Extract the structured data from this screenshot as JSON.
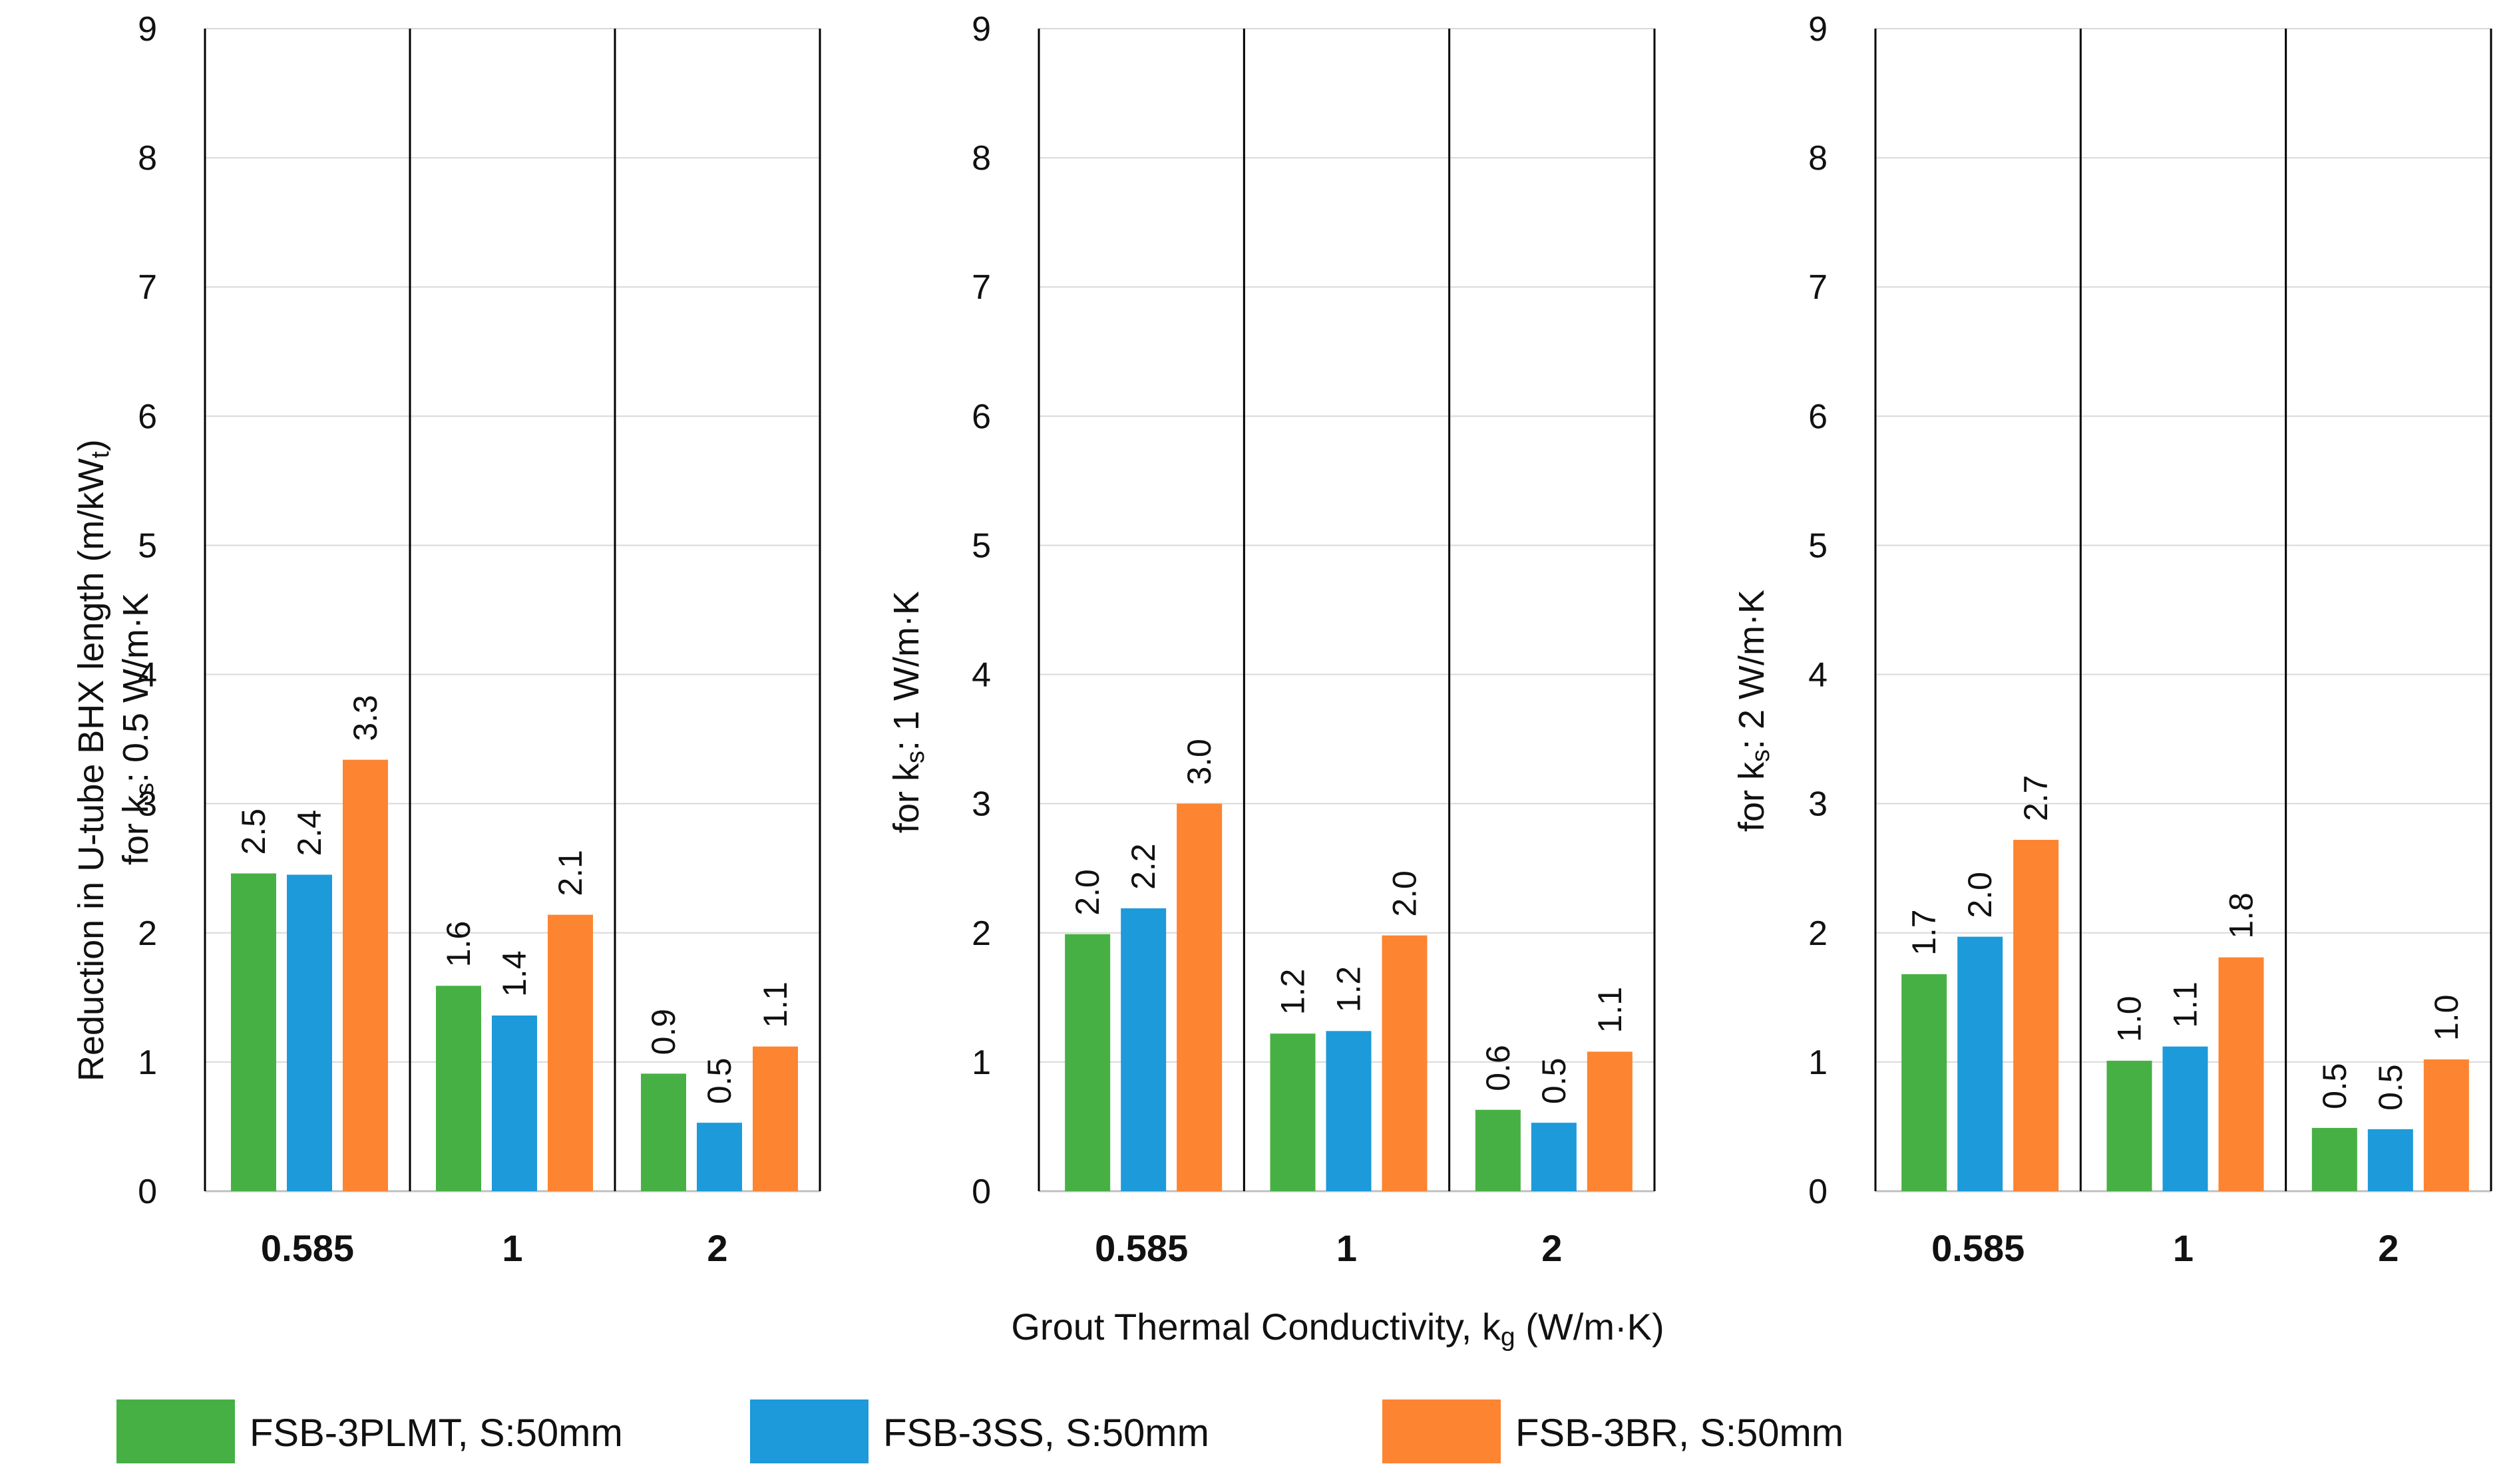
{
  "chart_data": {
    "type": "bar",
    "xlabel": "Grout Thermal Conductivity, k",
    "xlabel_sub": "g",
    "xlabel_suffix": " (W/m·K)",
    "ylabel_main": "Reduction in U-tube BHX length (m/kW",
    "ylabel_main_sub": "t",
    "ylabel_main_suffix": ")",
    "ylim": [
      0,
      9
    ],
    "yticks": [
      "0",
      "1",
      "2",
      "3",
      "4",
      "5",
      "6",
      "7",
      "8",
      "9"
    ],
    "categories": [
      "0.585",
      "1",
      "2"
    ],
    "series_names": [
      "FSB-3PLMT, S:50mm",
      "FSB-3SS, S:50mm",
      "FSB-3BR, S:50mm"
    ],
    "colors": [
      "#47b044",
      "#1d9ad9",
      "#fd8430"
    ],
    "legend_position": "bottom",
    "panels": [
      {
        "ylabel_prefix": "for k",
        "ylabel_sub": "s",
        "ylabel_suffix": ": 0.5 W/m·K",
        "series": [
          {
            "name": "FSB-3PLMT, S:50mm",
            "values": [
              2.46,
              1.59,
              0.91
            ],
            "labels": [
              "2.5",
              "1.6",
              "0.9"
            ]
          },
          {
            "name": "FSB-3SS, S:50mm",
            "values": [
              2.45,
              1.36,
              0.53
            ],
            "labels": [
              "2.4",
              "1.4",
              "0.5"
            ]
          },
          {
            "name": "FSB-3BR, S:50mm",
            "values": [
              3.34,
              2.14,
              1.12
            ],
            "labels": [
              "3.3",
              "2.1",
              "1.1"
            ]
          }
        ]
      },
      {
        "ylabel_prefix": "for k",
        "ylabel_sub": "s",
        "ylabel_suffix": ": 1 W/m·K",
        "series": [
          {
            "name": "FSB-3PLMT, S:50mm",
            "values": [
              1.99,
              1.22,
              0.63
            ],
            "labels": [
              "2.0",
              "1.2",
              "0.6"
            ]
          },
          {
            "name": "FSB-3SS, S:50mm",
            "values": [
              2.19,
              1.24,
              0.53
            ],
            "labels": [
              "2.2",
              "1.2",
              "0.5"
            ]
          },
          {
            "name": "FSB-3BR, S:50mm",
            "values": [
              3.0,
              1.98,
              1.08
            ],
            "labels": [
              "3.0",
              "2.0",
              "1.1"
            ]
          }
        ]
      },
      {
        "ylabel_prefix": "for k",
        "ylabel_sub": "s",
        "ylabel_suffix": ": 2 W/m·K",
        "series": [
          {
            "name": "FSB-3PLMT, S:50mm",
            "values": [
              1.68,
              1.01,
              0.49
            ],
            "labels": [
              "1.7",
              "1.0",
              "0.5"
            ]
          },
          {
            "name": "FSB-3SS, S:50mm",
            "values": [
              1.97,
              1.12,
              0.48
            ],
            "labels": [
              "2.0",
              "1.1",
              "0.5"
            ]
          },
          {
            "name": "FSB-3BR, S:50mm",
            "values": [
              2.72,
              1.81,
              1.02
            ],
            "labels": [
              "2.7",
              "1.8",
              "1.0"
            ]
          }
        ]
      }
    ]
  }
}
